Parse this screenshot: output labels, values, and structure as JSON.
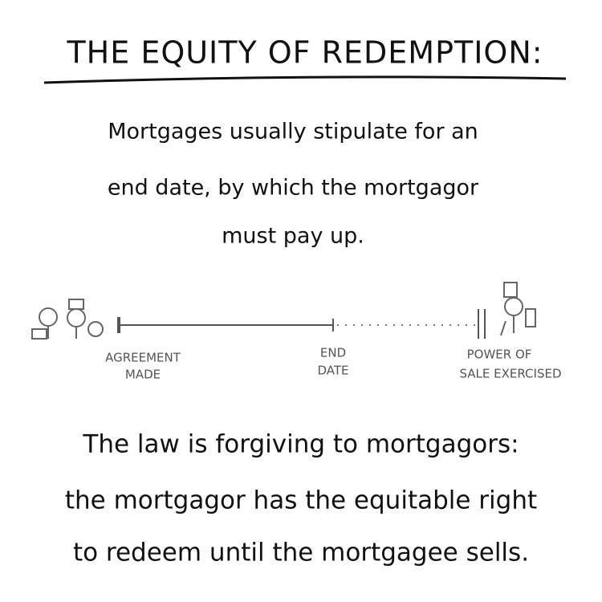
{
  "title": "THE EQUITY OF REDEMPTION:",
  "intro": {
    "lines": [
      "Mortgages usually stipulate for an",
      "end date, by which the mortgagor",
      "must pay up."
    ]
  },
  "timeline": {
    "points": [
      {
        "label": [
          "AGREEMENT",
          "MADE"
        ]
      },
      {
        "label": [
          "END",
          "DATE"
        ]
      },
      {
        "label": [
          "POWER OF",
          "SALE EXERCISED"
        ]
      }
    ]
  },
  "conclusion": {
    "lines": [
      "The law is forgiving to mortgagors:",
      "the mortgagor has the equitable right",
      "to redeem until the mortgagee sells."
    ]
  }
}
